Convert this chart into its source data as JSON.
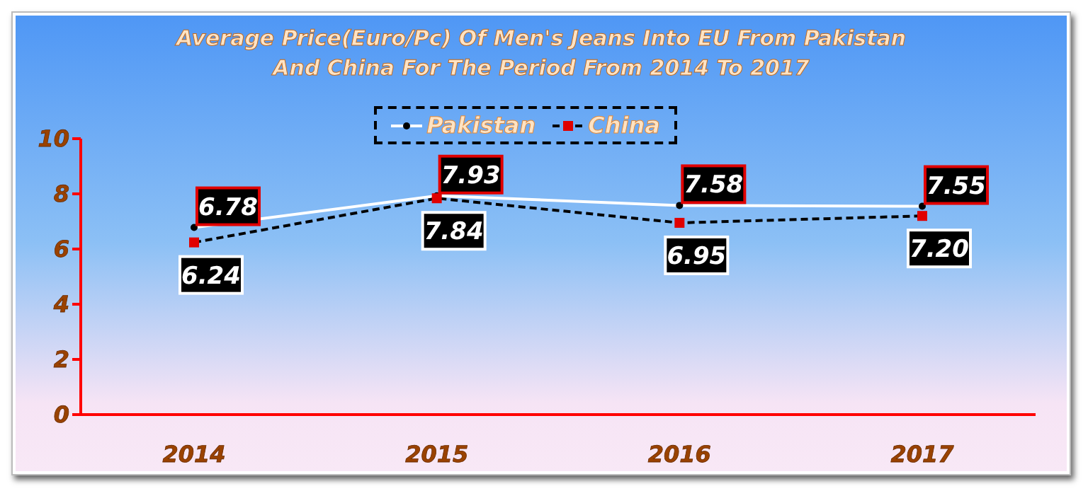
{
  "chart_data": {
    "type": "line",
    "title": "Average Price(Euro/Pc) Of Men's Jeans Into EU From Pakistan And China For The Period From 2014 To 2017",
    "categories": [
      "2014",
      "2015",
      "2016",
      "2017"
    ],
    "series": [
      {
        "name": "Pakistan",
        "color": "#ffffff",
        "values": [
          6.78,
          7.93,
          7.58,
          7.55
        ],
        "value_labels": [
          "6.78",
          "7.93",
          "7.58",
          "7.55"
        ],
        "marker": "circle",
        "line_style": "solid"
      },
      {
        "name": "China",
        "color": "#000000",
        "values": [
          6.24,
          7.84,
          6.95,
          7.2
        ],
        "value_labels": [
          "6.24",
          "7.84",
          "6.95",
          "7.20"
        ],
        "marker": "square",
        "line_style": "dashed"
      }
    ],
    "ylim": [
      0,
      10
    ],
    "yticks": [
      0,
      2,
      4,
      6,
      8,
      10
    ],
    "grid": false,
    "legend": "top"
  }
}
